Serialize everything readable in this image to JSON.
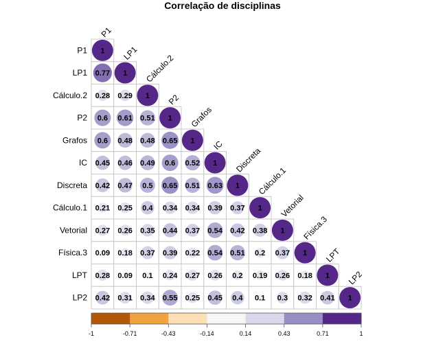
{
  "chart_data": {
    "type": "heatmap",
    "title": "Correlação de disciplinas",
    "variables": [
      "P1",
      "LP1",
      "Cálculo.2",
      "P2",
      "Grafos",
      "IC",
      "Discreta",
      "Cálculo.1",
      "Vetorial",
      "Física.3",
      "LPT",
      "LP2"
    ],
    "matrix": [
      [
        1
      ],
      [
        0.77,
        1
      ],
      [
        0.28,
        0.29,
        1
      ],
      [
        0.6,
        0.61,
        0.51,
        1
      ],
      [
        0.6,
        0.48,
        0.48,
        0.65,
        1
      ],
      [
        0.45,
        0.46,
        0.49,
        0.6,
        0.52,
        1
      ],
      [
        0.42,
        0.47,
        0.5,
        0.65,
        0.51,
        0.63,
        1
      ],
      [
        0.21,
        0.25,
        0.4,
        0.34,
        0.34,
        0.39,
        0.37,
        1
      ],
      [
        0.27,
        0.26,
        0.35,
        0.44,
        0.37,
        0.54,
        0.42,
        0.38,
        1
      ],
      [
        0.09,
        0.18,
        0.37,
        0.39,
        0.22,
        0.54,
        0.51,
        0.2,
        0.37,
        1
      ],
      [
        0.28,
        0.09,
        0.1,
        0.24,
        0.27,
        0.26,
        0.2,
        0.19,
        0.26,
        0.18,
        1
      ],
      [
        0.42,
        0.31,
        0.34,
        0.55,
        0.25,
        0.45,
        0.4,
        0.1,
        0.3,
        0.32,
        0.41,
        1
      ]
    ],
    "color_scale": {
      "ticks": [
        "-1",
        "-0.71",
        "-0.43",
        "-0.14",
        "0.14",
        "0.43",
        "0.71",
        "1"
      ],
      "colors": [
        "#b35806",
        "#f1a340",
        "#fee0b6",
        "#f7f7f7",
        "#d8daeb",
        "#998ec3",
        "#542788"
      ],
      "range": [
        -1,
        1
      ]
    },
    "legend_position": "bottom"
  }
}
